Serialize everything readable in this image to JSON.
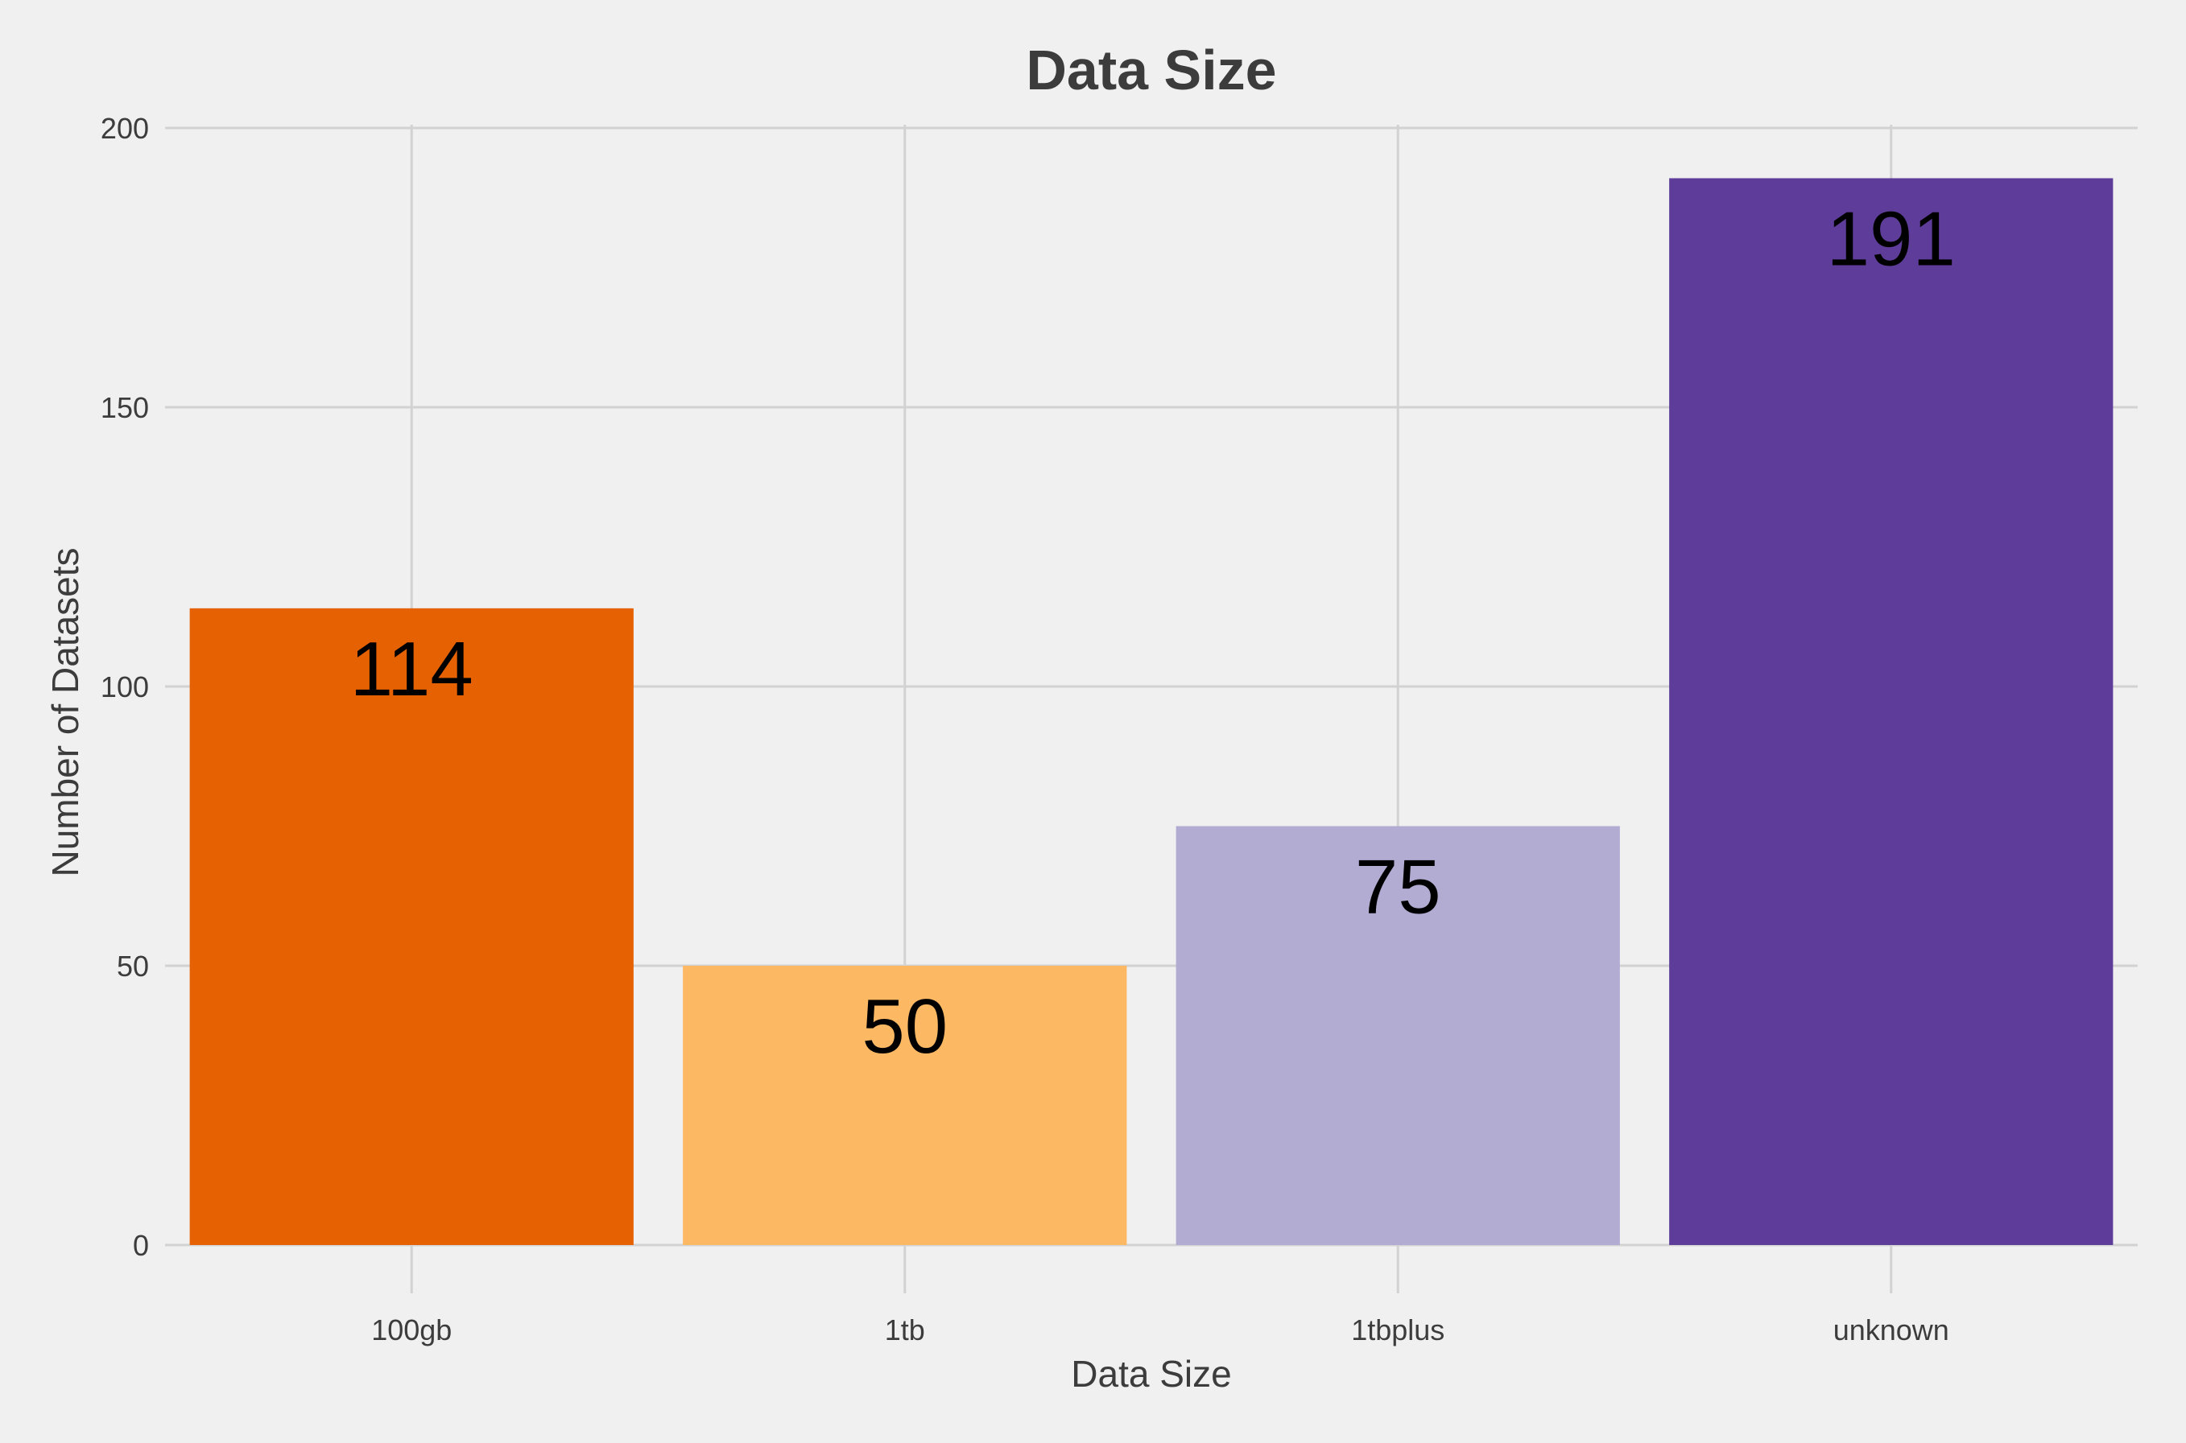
{
  "chart_data": {
    "type": "bar",
    "title": "Data Size",
    "xlabel": "Data Size",
    "ylabel": "Number of Datasets",
    "categories": [
      "100gb",
      "1tb",
      "1tbplus",
      "unknown"
    ],
    "values": [
      114,
      50,
      75,
      191
    ],
    "data_labels": [
      "114",
      "50",
      "75",
      "191"
    ],
    "bar_colors": [
      "#e66101",
      "#fdb863",
      "#b2abd2",
      "#5e3c99"
    ],
    "ylim": [
      0,
      200
    ],
    "yticks": [
      0,
      50,
      100,
      150,
      200
    ],
    "ytick_labels": [
      "0",
      "50",
      "100",
      "150",
      "200"
    ],
    "grid": true,
    "legend": "none",
    "background_color": "#f0f0f0",
    "grid_color": "#d2d2d2"
  }
}
